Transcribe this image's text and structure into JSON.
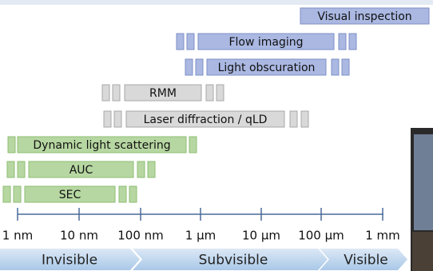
{
  "techniques": [
    {
      "label": "Visual inspection"
    },
    {
      "label": "Flow imaging"
    },
    {
      "label": "Light obscuration"
    },
    {
      "label": "RMM"
    },
    {
      "label": "Laser diffraction / qLD"
    },
    {
      "label": "Dynamic light scattering"
    },
    {
      "label": "AUC"
    },
    {
      "label": "SEC"
    }
  ],
  "axis": {
    "labels": [
      "1 nm",
      "10 nm",
      "100 nm",
      "1 µm",
      "10 µm",
      "100 µm",
      "1 mm"
    ]
  },
  "zones": [
    "Invisible",
    "Subvisible",
    "Visible"
  ]
}
